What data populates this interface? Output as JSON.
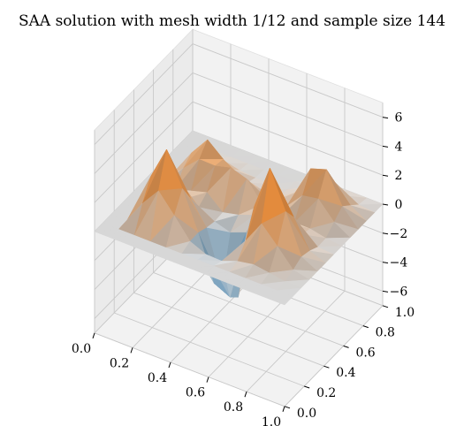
{
  "chart_data": {
    "type": "surface3d",
    "title": "SAA solution with mesh width 1/12 and sample size 144",
    "xlabel": "",
    "ylabel": "",
    "zlabel": "",
    "x_ticks": [
      "0.0",
      "0.2",
      "0.4",
      "0.6",
      "0.8",
      "1.0"
    ],
    "y_ticks": [
      "0.0",
      "0.2",
      "0.4",
      "0.6",
      "0.8",
      "1.0"
    ],
    "z_ticks": [
      "6",
      "4",
      "2",
      "0",
      "−2",
      "−4",
      "−6"
    ],
    "xlim": [
      0,
      1
    ],
    "ylim": [
      0,
      1
    ],
    "zlim": [
      -7,
      7
    ],
    "grid": true,
    "colormap": "blue-white-orange diverging",
    "colors": {
      "positive": "#ff7f0e",
      "negative": "#1f77b4",
      "zero": "#d9d9d9"
    },
    "grid_resolution": 13,
    "positive_peaks": [
      {
        "x": 0.25,
        "y": 0.25,
        "height": 5.2
      },
      {
        "x": 0.45,
        "y": 0.55,
        "height": 3.8
      },
      {
        "x": 0.25,
        "y": 0.65,
        "height": 3.0
      },
      {
        "x": 0.75,
        "y": 0.35,
        "height": 6.0
      },
      {
        "x": 0.8,
        "y": 0.75,
        "height": 3.6
      }
    ],
    "negative_wells": [
      {
        "x": 0.55,
        "y": 0.3,
        "depth": -6.5
      },
      {
        "x": 0.45,
        "y": 0.5,
        "depth": -3.5
      }
    ]
  }
}
